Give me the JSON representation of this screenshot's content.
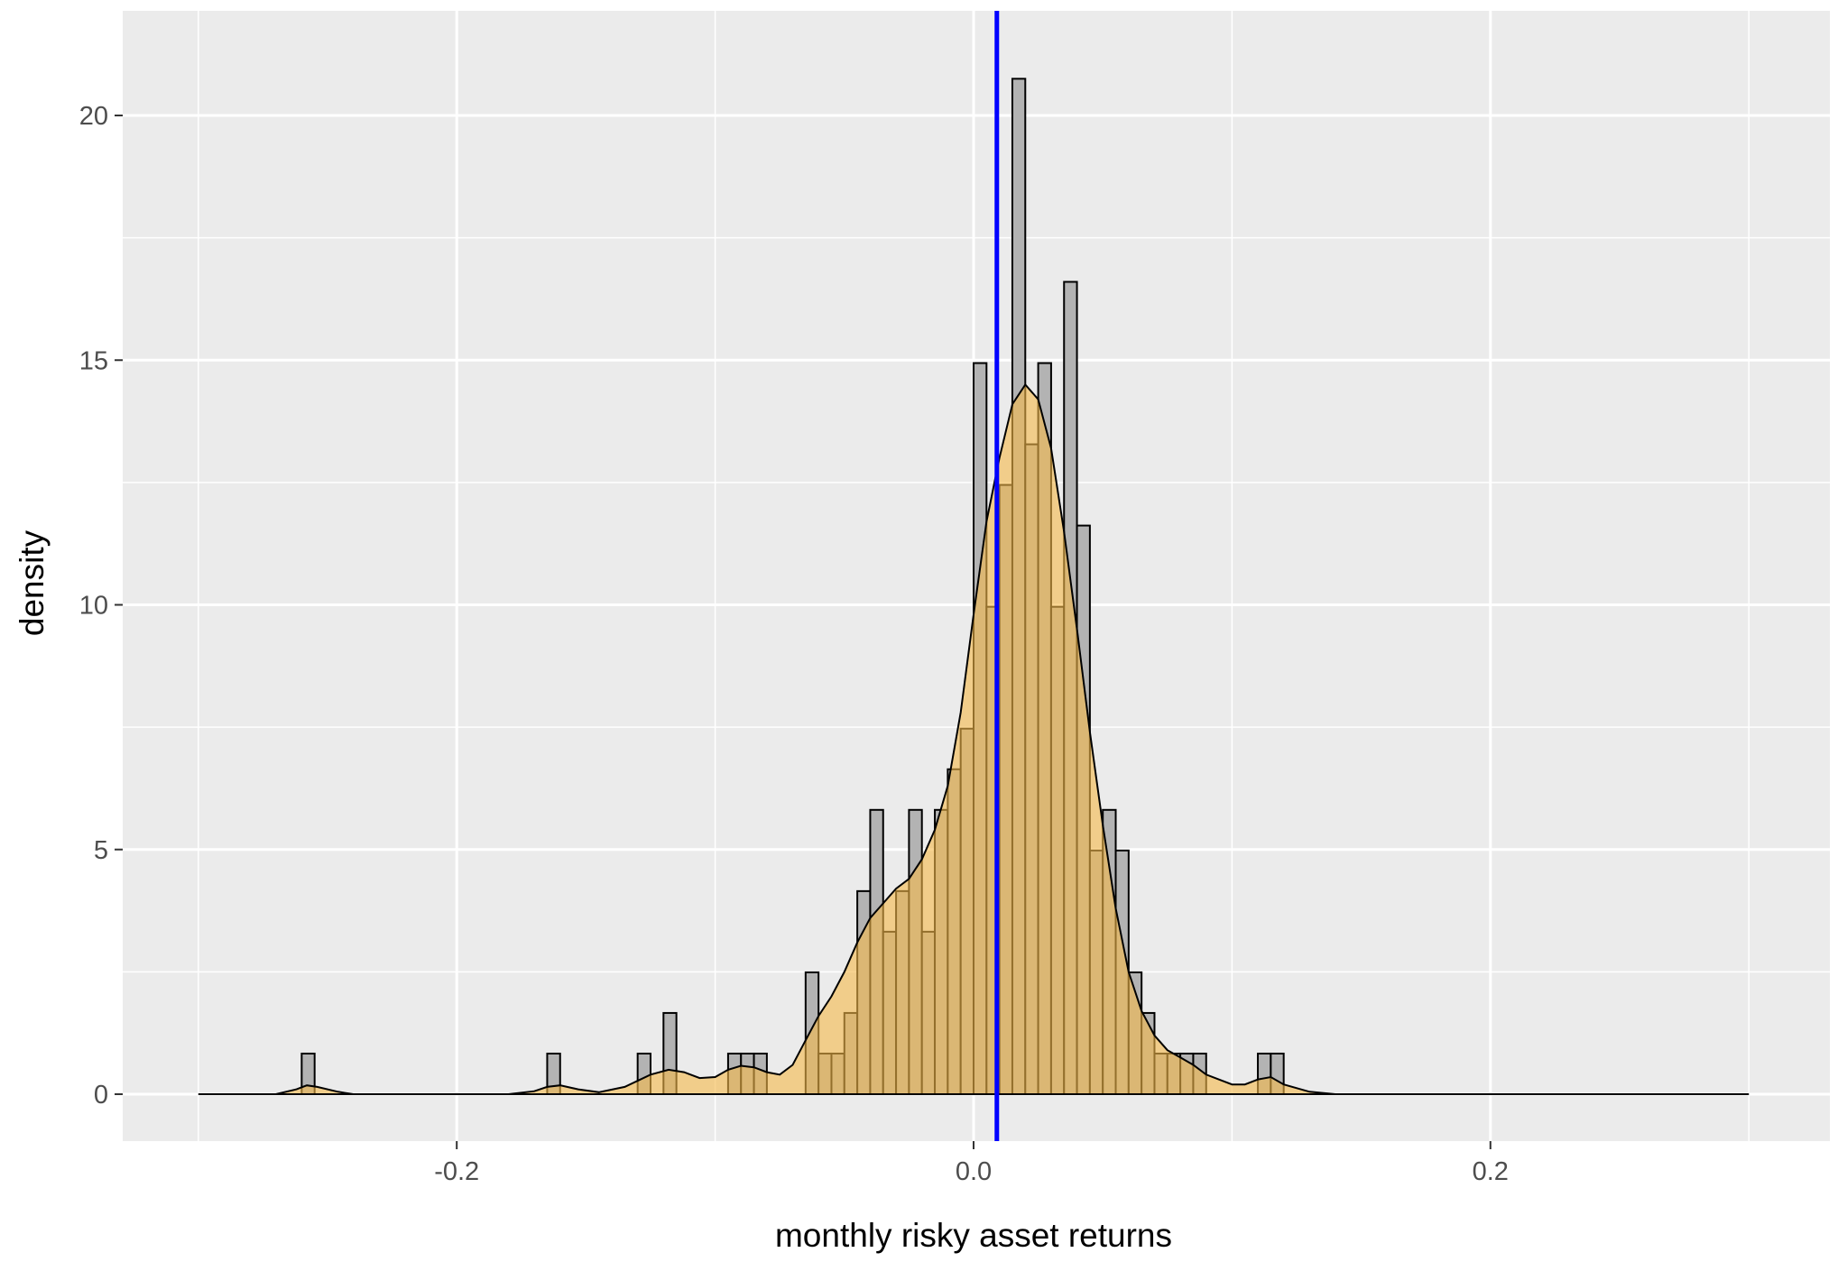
{
  "chart_data": {
    "type": "histogram",
    "title": "",
    "xlabel": "monthly risky asset returns",
    "ylabel": "density",
    "xlim": [
      -0.3,
      0.3
    ],
    "ylim": [
      -1,
      22
    ],
    "xticks": [
      -0.2,
      0.0,
      0.2
    ],
    "xtick_labels": [
      "-0.2",
      "0.0",
      "0.2"
    ],
    "xminor": [
      -0.3,
      -0.1,
      0.1,
      0.3
    ],
    "yticks": [
      0,
      5,
      10,
      15,
      20
    ],
    "ytick_labels": [
      "0",
      "5",
      "10",
      "15",
      "20"
    ],
    "yminor": [
      2.5,
      7.5,
      12.5,
      17.5
    ],
    "grid": true,
    "legend": "none",
    "histogram": {
      "bin_width": 0.005,
      "fill": "#b3b3b3",
      "stroke": "#000000",
      "bins": [
        {
          "x": -0.2575,
          "density": 0.83
        },
        {
          "x": -0.1625,
          "density": 0.83
        },
        {
          "x": -0.1275,
          "density": 0.83
        },
        {
          "x": -0.1175,
          "density": 1.66
        },
        {
          "x": -0.0925,
          "density": 0.83
        },
        {
          "x": -0.0875,
          "density": 0.83
        },
        {
          "x": -0.0825,
          "density": 0.83
        },
        {
          "x": -0.0625,
          "density": 2.49
        },
        {
          "x": -0.0575,
          "density": 0.83
        },
        {
          "x": -0.0525,
          "density": 0.83
        },
        {
          "x": -0.0475,
          "density": 1.66
        },
        {
          "x": -0.0425,
          "density": 4.15
        },
        {
          "x": -0.0375,
          "density": 5.81
        },
        {
          "x": -0.0325,
          "density": 3.32
        },
        {
          "x": -0.0275,
          "density": 4.15
        },
        {
          "x": -0.0225,
          "density": 5.81
        },
        {
          "x": -0.0175,
          "density": 3.32
        },
        {
          "x": -0.0125,
          "density": 5.81
        },
        {
          "x": -0.0075,
          "density": 6.64
        },
        {
          "x": -0.0025,
          "density": 7.47
        },
        {
          "x": 0.0025,
          "density": 14.94
        },
        {
          "x": 0.0075,
          "density": 9.96
        },
        {
          "x": 0.0125,
          "density": 12.45
        },
        {
          "x": 0.0175,
          "density": 20.75
        },
        {
          "x": 0.0225,
          "density": 13.28
        },
        {
          "x": 0.0275,
          "density": 14.94
        },
        {
          "x": 0.0325,
          "density": 9.96
        },
        {
          "x": 0.0375,
          "density": 16.6
        },
        {
          "x": 0.0425,
          "density": 11.62
        },
        {
          "x": 0.0475,
          "density": 4.98
        },
        {
          "x": 0.0525,
          "density": 5.81
        },
        {
          "x": 0.0575,
          "density": 4.98
        },
        {
          "x": 0.0625,
          "density": 2.49
        },
        {
          "x": 0.0675,
          "density": 1.66
        },
        {
          "x": 0.0725,
          "density": 0.83
        },
        {
          "x": 0.0775,
          "density": 0.83
        },
        {
          "x": 0.0825,
          "density": 0.83
        },
        {
          "x": 0.0875,
          "density": 0.83
        },
        {
          "x": 0.1125,
          "density": 0.83
        },
        {
          "x": 0.1175,
          "density": 0.83
        }
      ]
    },
    "density_curve": {
      "fill": "#f5b94a",
      "fill_opacity": 0.6,
      "stroke": "#000000",
      "x": [
        -0.3,
        -0.27,
        -0.262,
        -0.258,
        -0.254,
        -0.246,
        -0.24,
        -0.23,
        -0.18,
        -0.17,
        -0.165,
        -0.16,
        -0.153,
        -0.145,
        -0.135,
        -0.125,
        -0.118,
        -0.112,
        -0.106,
        -0.1,
        -0.095,
        -0.09,
        -0.085,
        -0.08,
        -0.075,
        -0.07,
        -0.065,
        -0.06,
        -0.055,
        -0.05,
        -0.045,
        -0.04,
        -0.035,
        -0.03,
        -0.025,
        -0.02,
        -0.015,
        -0.01,
        -0.005,
        0.0,
        0.005,
        0.01,
        0.015,
        0.02,
        0.025,
        0.03,
        0.035,
        0.04,
        0.045,
        0.05,
        0.055,
        0.06,
        0.065,
        0.07,
        0.075,
        0.08,
        0.085,
        0.09,
        0.1,
        0.105,
        0.11,
        0.115,
        0.12,
        0.13,
        0.14,
        0.3
      ],
      "y": [
        0,
        0,
        0.1,
        0.18,
        0.15,
        0.05,
        0,
        0,
        0,
        0.06,
        0.15,
        0.18,
        0.1,
        0.04,
        0.15,
        0.4,
        0.5,
        0.45,
        0.33,
        0.35,
        0.5,
        0.58,
        0.55,
        0.45,
        0.4,
        0.6,
        1.1,
        1.6,
        2.0,
        2.5,
        3.1,
        3.6,
        3.9,
        4.2,
        4.4,
        4.8,
        5.4,
        6.3,
        7.8,
        9.8,
        11.7,
        13.0,
        14.1,
        14.5,
        14.2,
        13.2,
        11.5,
        9.5,
        7.4,
        5.5,
        3.8,
        2.5,
        1.7,
        1.2,
        0.9,
        0.75,
        0.6,
        0.4,
        0.2,
        0.2,
        0.3,
        0.35,
        0.2,
        0.05,
        0,
        0
      ]
    },
    "vline": {
      "x": 0.009,
      "color": "#0000ff"
    }
  }
}
